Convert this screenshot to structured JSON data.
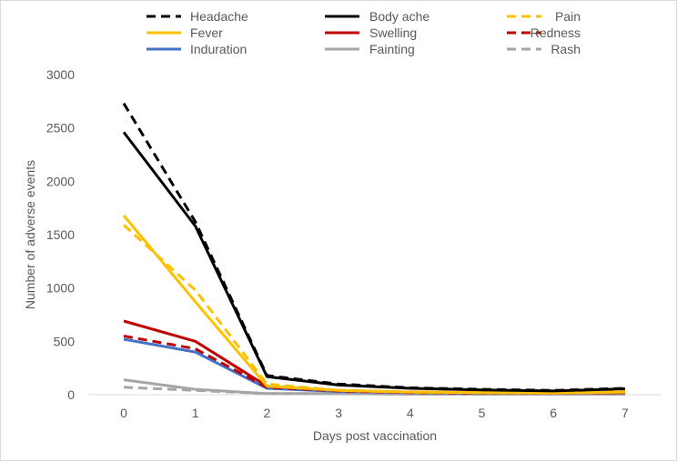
{
  "chart_data": {
    "type": "line",
    "title": "",
    "xlabel": "Days post vaccination",
    "ylabel": "Number of adverse  events",
    "x": [
      0,
      1,
      2,
      3,
      4,
      5,
      6,
      7
    ],
    "xticks": [
      "0",
      "1",
      "2",
      "3",
      "4",
      "5",
      "6",
      "7"
    ],
    "yticks": [
      "0",
      "500",
      "1000",
      "1500",
      "2000",
      "2500",
      "3000"
    ],
    "ylim": [
      0,
      3000
    ],
    "grid": false,
    "legend_position": "top",
    "series": [
      {
        "name": "Headache",
        "color": "#000000",
        "dash": "dashed",
        "values": [
          2730,
          1620,
          180,
          100,
          65,
          50,
          40,
          60
        ]
      },
      {
        "name": "Body ache",
        "color": "#000000",
        "dash": "solid",
        "values": [
          2460,
          1580,
          170,
          90,
          60,
          45,
          35,
          55
        ]
      },
      {
        "name": "Pain",
        "color": "#FFC000",
        "dash": "dashed",
        "values": [
          1590,
          980,
          100,
          40,
          25,
          20,
          20,
          30
        ]
      },
      {
        "name": "Fever",
        "color": "#FFC000",
        "dash": "solid",
        "values": [
          1680,
          870,
          80,
          40,
          25,
          20,
          15,
          25
        ]
      },
      {
        "name": "Swelling",
        "color": "#C00000",
        "dash": "solid",
        "values": [
          690,
          500,
          80,
          40,
          25,
          20,
          15,
          20
        ]
      },
      {
        "name": "Redness",
        "color": "#C00000",
        "dash": "dashed",
        "values": [
          550,
          430,
          70,
          35,
          20,
          15,
          15,
          20
        ]
      },
      {
        "name": "Induration",
        "color": "#4472C4",
        "dash": "solid",
        "values": [
          520,
          400,
          60,
          30,
          20,
          15,
          15,
          20
        ]
      },
      {
        "name": "Fainting",
        "color": "#A5A5A5",
        "dash": "solid",
        "values": [
          140,
          50,
          10,
          10,
          5,
          5,
          5,
          5
        ]
      },
      {
        "name": "Rash",
        "color": "#A5A5A5",
        "dash": "dashed",
        "values": [
          70,
          40,
          10,
          10,
          5,
          5,
          5,
          5
        ]
      }
    ]
  }
}
